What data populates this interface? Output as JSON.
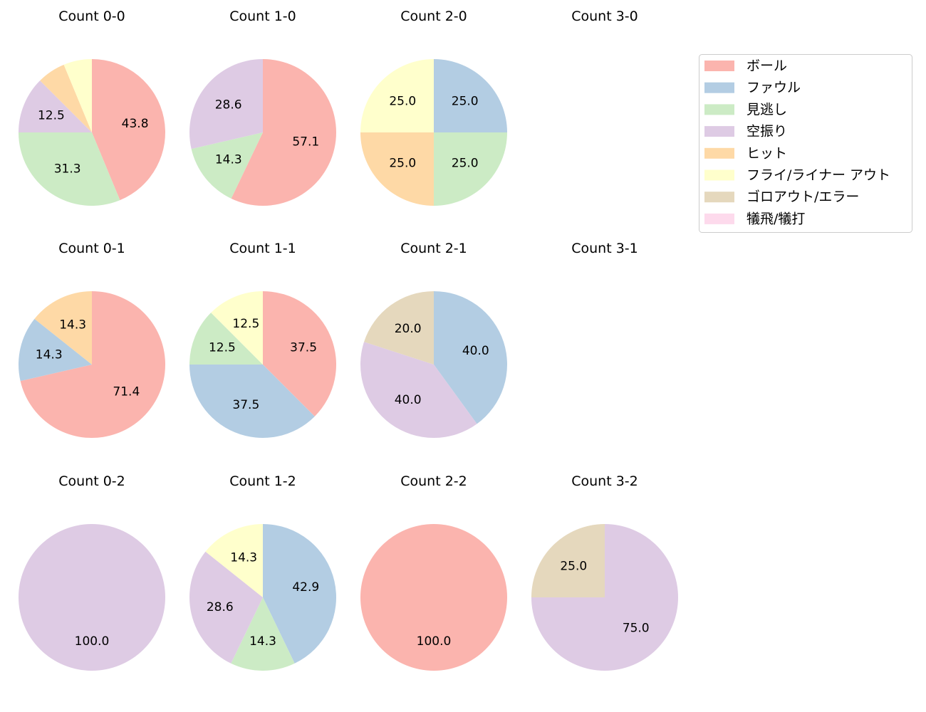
{
  "chart_data": {
    "type": "pie",
    "direction": "clockwise-from-top",
    "legend_placement": "top-right",
    "categories": [
      "ボール",
      "ファウル",
      "見逃し",
      "空振り",
      "ヒット",
      "フライ/ライナー アウト",
      "ゴロアウト/エラー",
      "犠飛/犠打"
    ],
    "colors": [
      "#fbb4ae",
      "#b3cde3",
      "#ccebc5",
      "#decbe4",
      "#fed9a6",
      "#ffffcc",
      "#e5d8bd",
      "#fddaec"
    ],
    "charts": [
      {
        "title": "Count 0-0",
        "values": [
          43.75,
          0,
          31.25,
          12.5,
          6.25,
          6.25,
          0,
          0
        ]
      },
      {
        "title": "Count 1-0",
        "values": [
          57.1,
          0,
          14.3,
          28.6,
          0,
          0,
          0,
          0
        ]
      },
      {
        "title": "Count 2-0",
        "values": [
          0,
          25,
          25,
          0,
          25,
          25,
          0,
          0
        ]
      },
      {
        "title": "Count 3-0",
        "values": []
      },
      {
        "title": "Count 0-1",
        "values": [
          71.4,
          14.3,
          0,
          0,
          14.3,
          0,
          0,
          0
        ]
      },
      {
        "title": "Count 1-1",
        "values": [
          37.5,
          37.5,
          12.5,
          0,
          0,
          12.5,
          0,
          0
        ]
      },
      {
        "title": "Count 2-1",
        "values": [
          0,
          40,
          0,
          40,
          0,
          0,
          20,
          0
        ]
      },
      {
        "title": "Count 3-1",
        "values": []
      },
      {
        "title": "Count 0-2",
        "values": [
          0,
          0,
          0,
          100,
          0,
          0,
          0,
          0
        ]
      },
      {
        "title": "Count 1-2",
        "values": [
          0,
          42.9,
          14.3,
          28.6,
          0,
          14.3,
          0,
          0
        ]
      },
      {
        "title": "Count 2-2",
        "values": [
          100,
          0,
          0,
          0,
          0,
          0,
          0,
          0
        ]
      },
      {
        "title": "Count 3-2",
        "values": [
          0,
          0,
          0,
          75,
          0,
          0,
          25,
          0
        ]
      }
    ]
  }
}
